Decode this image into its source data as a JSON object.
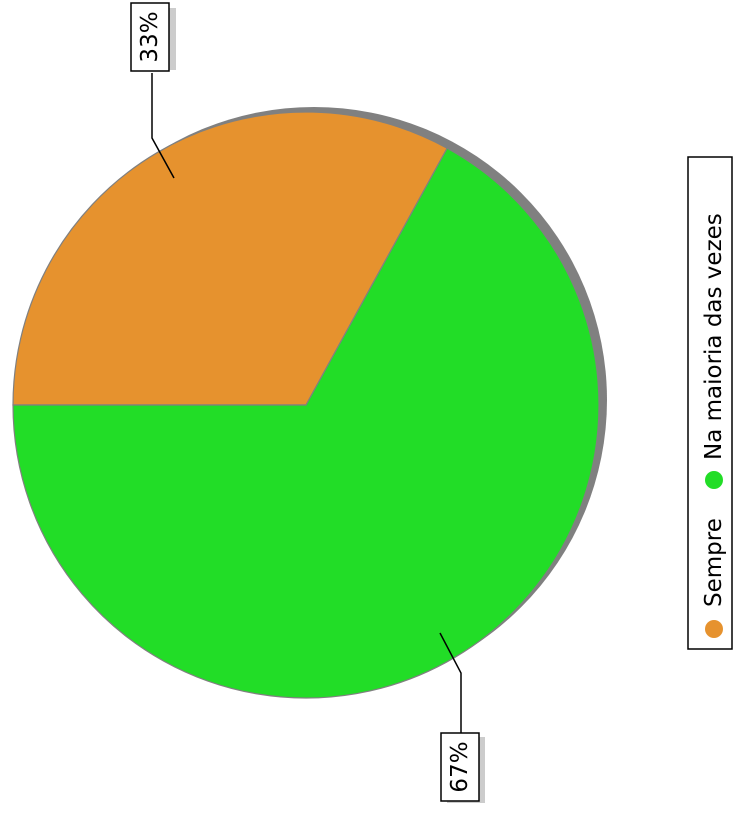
{
  "chart_data": {
    "type": "pie",
    "title": "",
    "slices": [
      {
        "label": "Sempre",
        "value": 33,
        "display": "33%",
        "color": "#e6922e"
      },
      {
        "label": "Na maioria das vezes",
        "value": 67,
        "display": "67%",
        "color": "#22dd27"
      }
    ],
    "legend": {
      "placement": "right",
      "entries": [
        "Sempre",
        "Na maioria das vezes"
      ]
    },
    "orientation": "rotated-90-clockwise"
  }
}
